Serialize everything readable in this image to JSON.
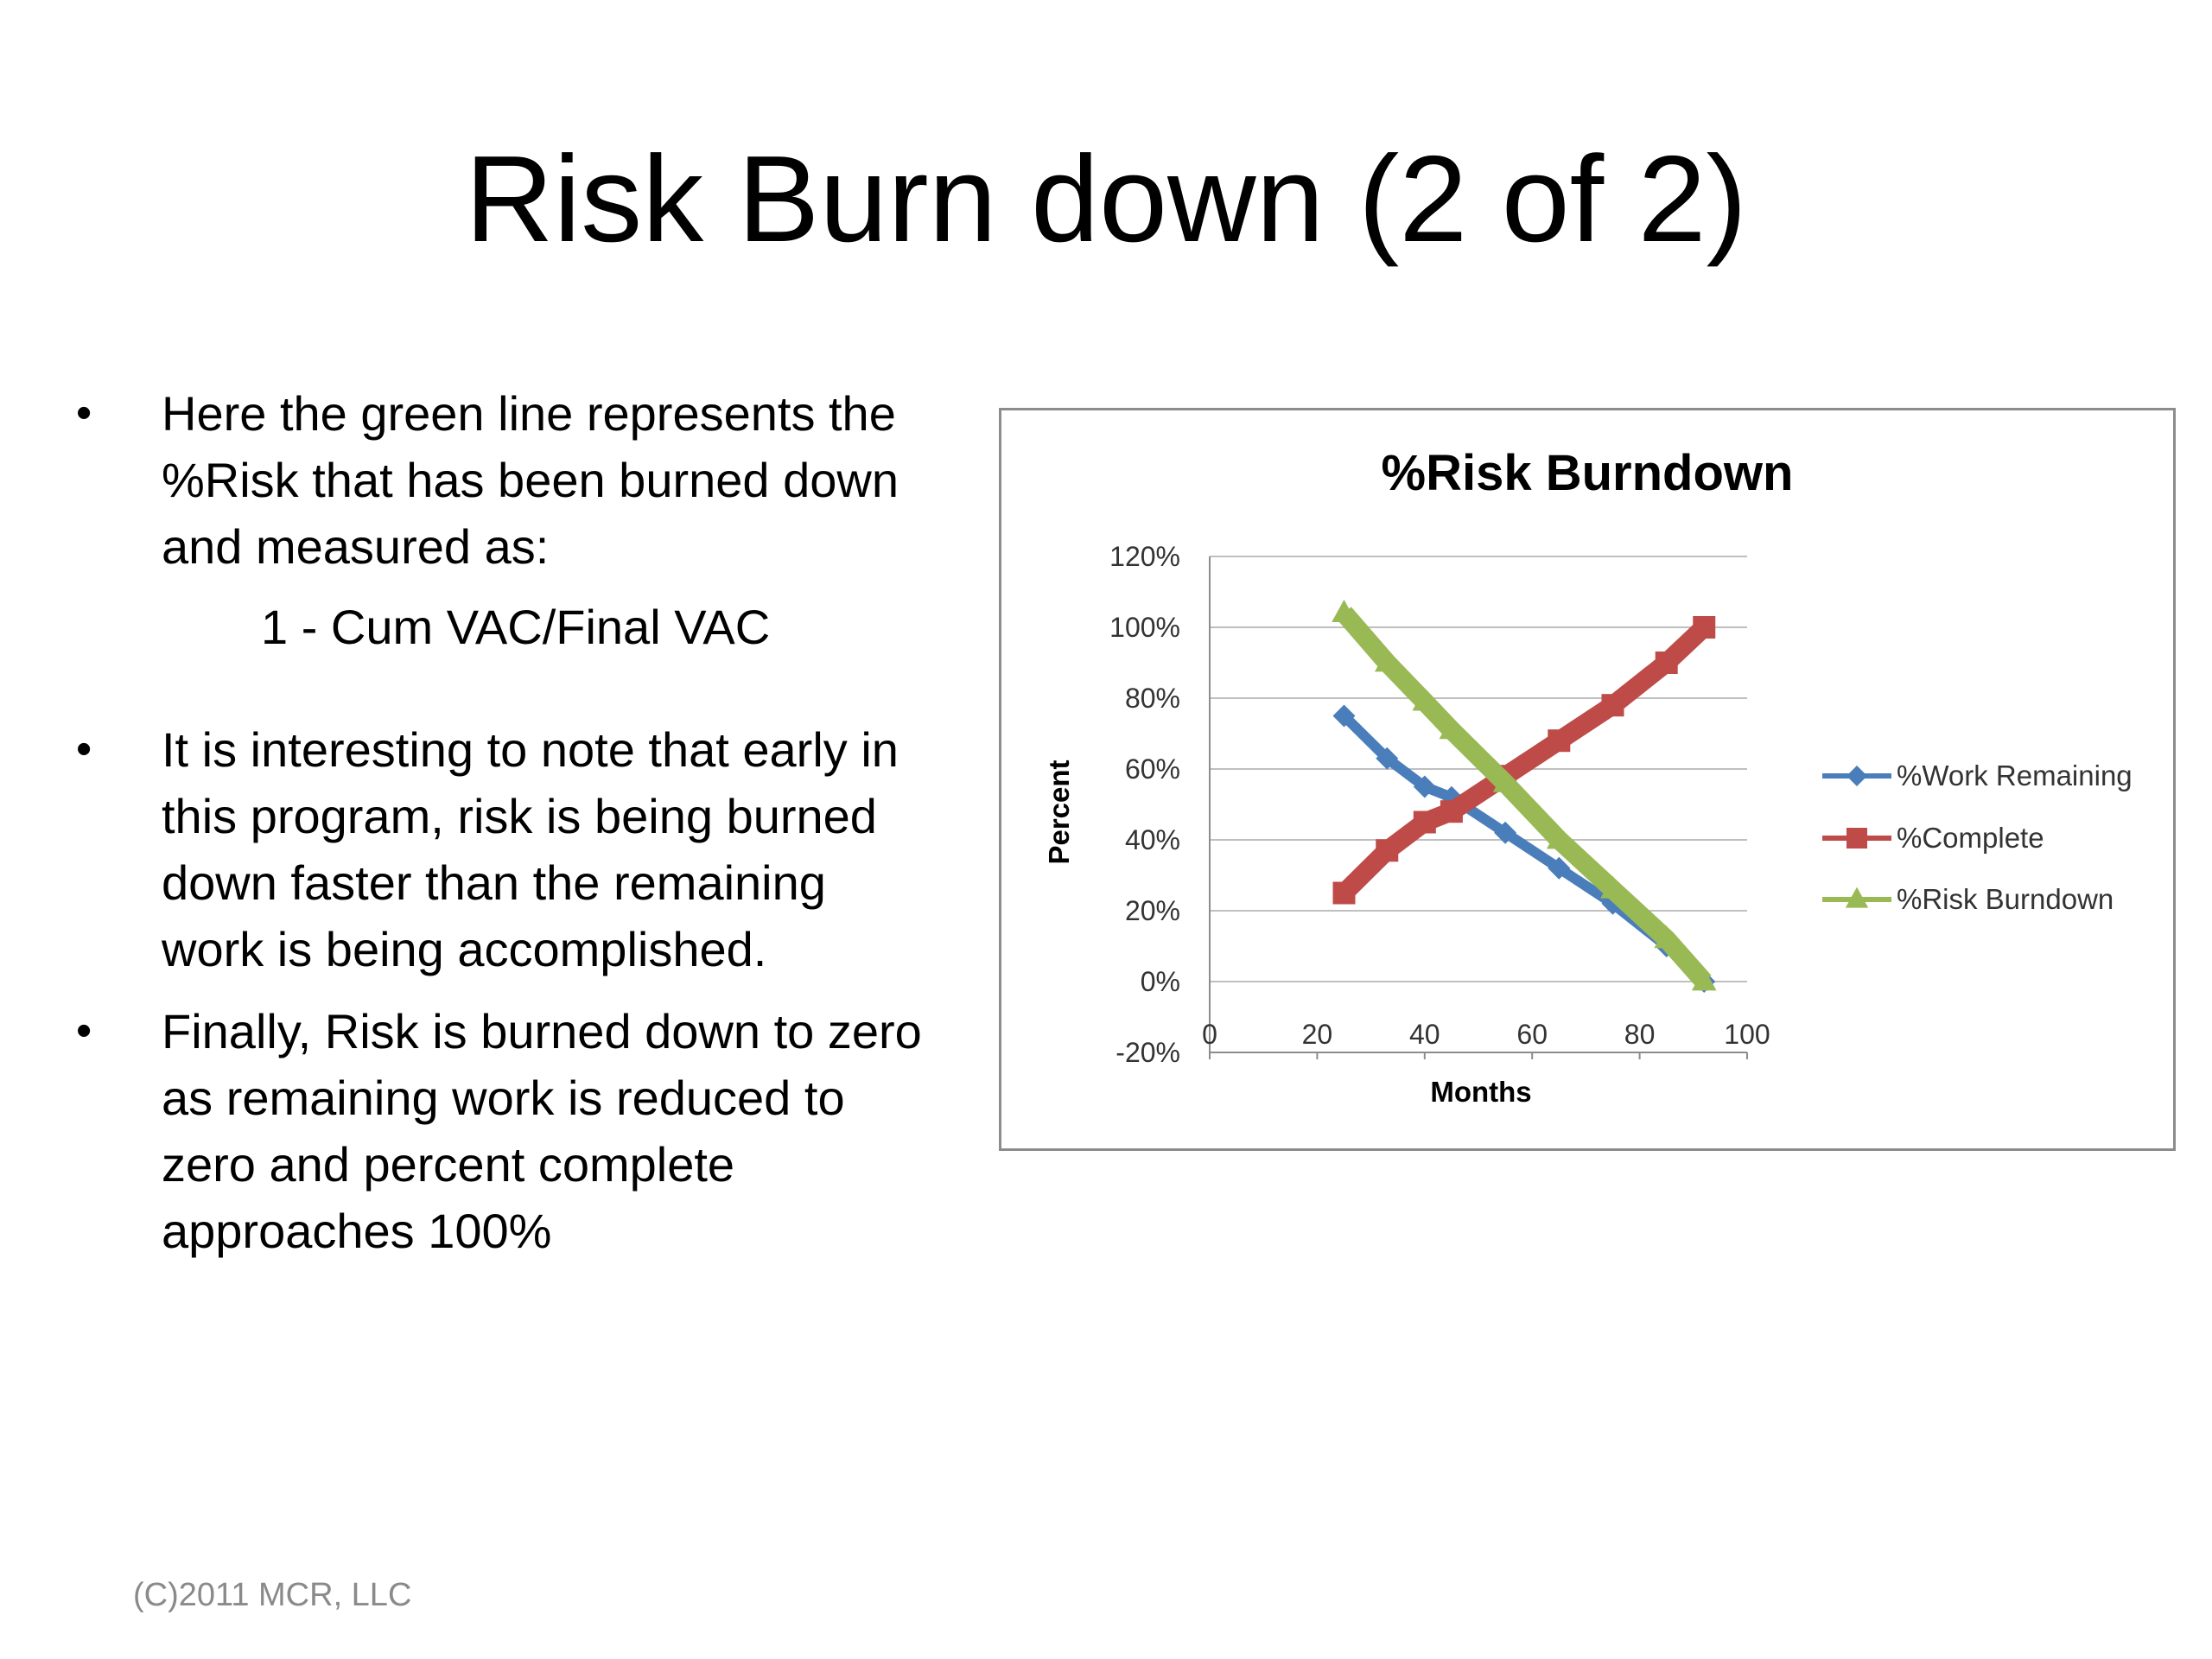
{
  "slide": {
    "title": "Risk Burn down (2 of 2)",
    "footer": "(C)2011 MCR, LLC"
  },
  "bullets": [
    {
      "bullet": "•",
      "lines": [
        "Here the green line represents the",
        "%Risk that has been burned down",
        "and measured as:"
      ],
      "sub": "1 - Cum VAC/Final VAC"
    },
    {
      "bullet": "•",
      "lines": [
        "It is interesting to note that early in",
        "this program, risk is being burned",
        "down faster than the remaining",
        "work is being accomplished."
      ]
    },
    {
      "bullet": "•",
      "lines": [
        "Finally, Risk is burned down to zero",
        "as remaining work is reduced to",
        "zero and percent complete",
        "approaches 100%"
      ]
    }
  ],
  "chart_data": {
    "type": "line",
    "title": "%Risk Burndown",
    "xlabel": "Months",
    "ylabel": "Percent",
    "xlim": [
      0,
      100
    ],
    "ylim": [
      -20,
      120
    ],
    "x_ticks": [
      "0",
      "20",
      "40",
      "60",
      "80",
      "100"
    ],
    "y_ticks": [
      "-20%",
      "0%",
      "20%",
      "40%",
      "60%",
      "80%",
      "100%",
      "120%"
    ],
    "y_tick_values": [
      -20,
      0,
      20,
      40,
      60,
      80,
      100,
      120
    ],
    "x_tick_values": [
      0,
      20,
      40,
      60,
      80,
      100
    ],
    "x_axis_crosses_at": -20,
    "grid": "horizontal",
    "legend": "right",
    "series": [
      {
        "name": "%Work Remaining",
        "color": "#4a7ebb",
        "marker": "diamond",
        "points": [
          [
            25,
            75
          ],
          [
            33,
            63
          ],
          [
            40,
            55
          ],
          [
            45,
            52
          ],
          [
            55,
            42
          ],
          [
            65,
            32
          ],
          [
            75,
            22
          ],
          [
            85,
            10
          ],
          [
            92,
            0
          ]
        ]
      },
      {
        "name": "%Complete",
        "color": "#be4b48",
        "marker": "square",
        "points": [
          [
            25,
            25
          ],
          [
            33,
            37
          ],
          [
            40,
            45
          ],
          [
            45,
            48
          ],
          [
            55,
            58
          ],
          [
            65,
            68
          ],
          [
            75,
            78
          ],
          [
            85,
            90
          ],
          [
            92,
            100
          ]
        ]
      },
      {
        "name": "%Risk Burndown",
        "color": "#98b954",
        "marker": "triangle",
        "points": [
          [
            25,
            104
          ],
          [
            33,
            90
          ],
          [
            40,
            79
          ],
          [
            45,
            71
          ],
          [
            55,
            56
          ],
          [
            65,
            40
          ],
          [
            75,
            26
          ],
          [
            85,
            12
          ],
          [
            92,
            0
          ]
        ]
      }
    ]
  }
}
